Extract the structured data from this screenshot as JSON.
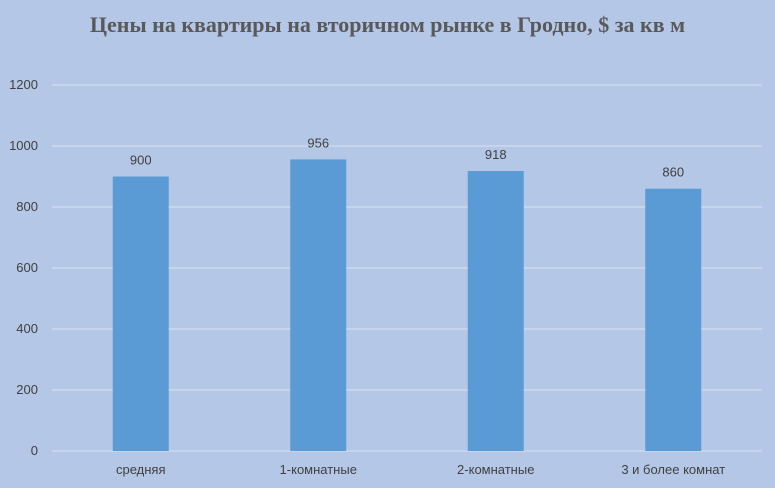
{
  "chart_data": {
    "type": "bar",
    "title": "Цены на квартиры на вторичном рынке в Гродно, $ за кв м",
    "categories": [
      "средняя",
      "1-комнатные",
      "2-комнатные",
      "3 и более комнат"
    ],
    "values": [
      900,
      956,
      918,
      860
    ],
    "ylim": [
      0,
      1200
    ],
    "yticks": [
      0,
      200,
      400,
      600,
      800,
      1000,
      1200
    ],
    "grid": true,
    "bar_color": "#5b9bd5",
    "grid_color": "#d9e2f0",
    "background": "#b4c7e7"
  }
}
